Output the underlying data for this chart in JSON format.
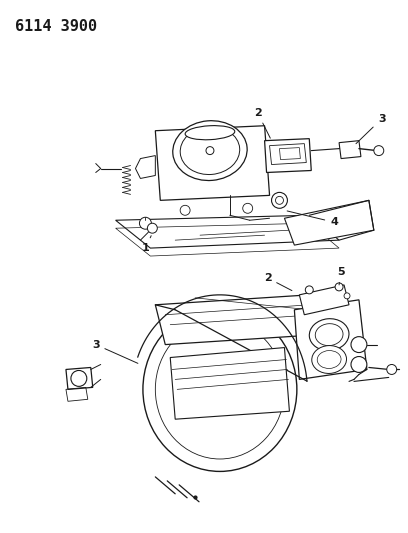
{
  "title": "6114 3900",
  "background_color": "#ffffff",
  "line_color": "#1a1a1a",
  "fig_width": 4.08,
  "fig_height": 5.33,
  "dpi": 100
}
